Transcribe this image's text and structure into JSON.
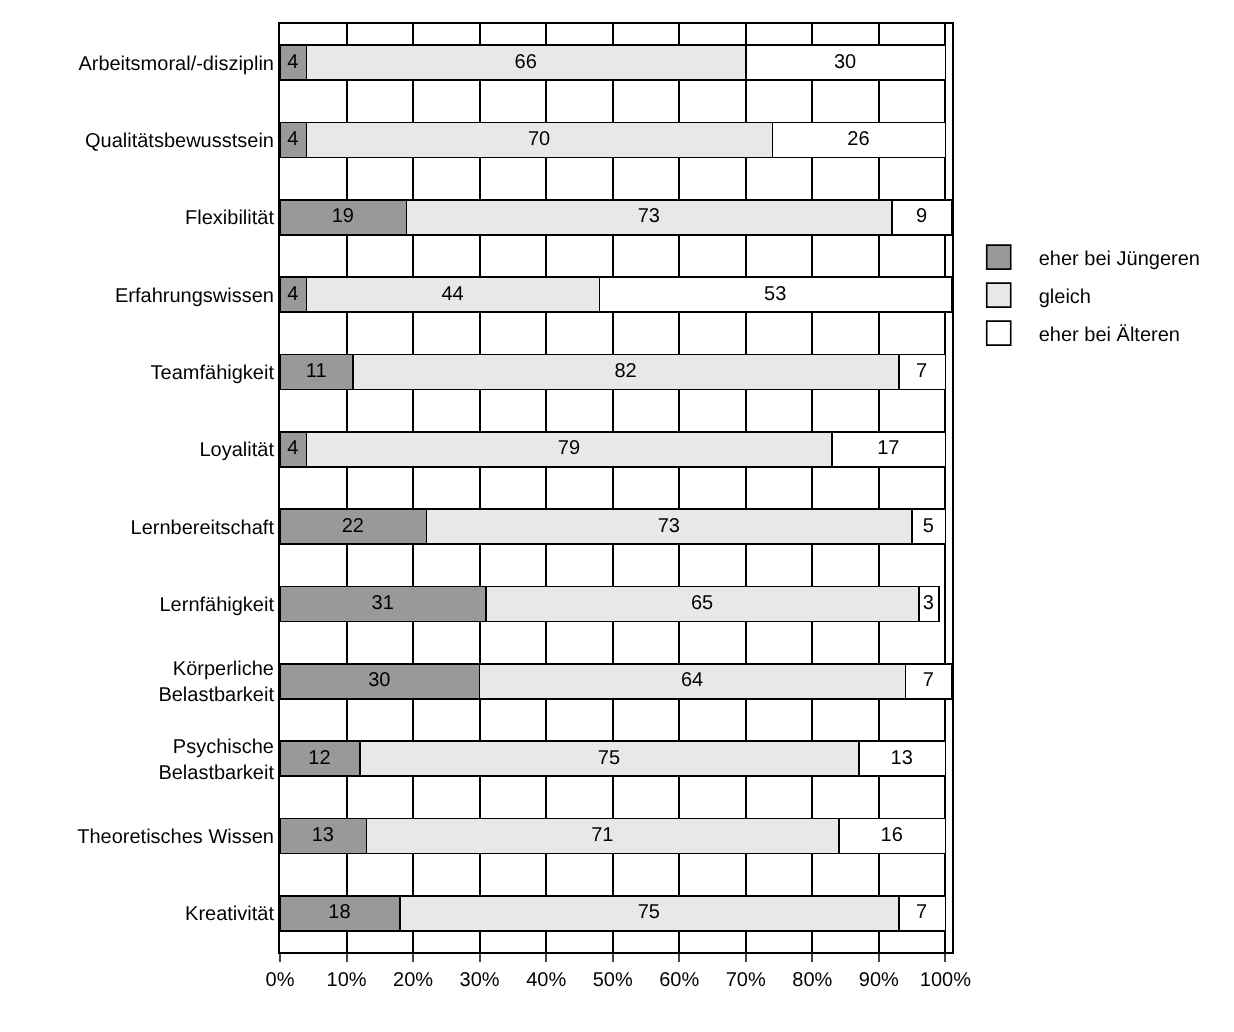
{
  "chart_data": {
    "type": "bar",
    "orientation": "horizontal",
    "stacked": true,
    "data_labels": true,
    "grid": "x",
    "legend": "right",
    "categories": [
      "Arbeitsmoral/-disziplin",
      "Qualitätsbewusstsein",
      "Flexibilität",
      "Erfahrungswissen",
      "Teamfähigkeit",
      "Loyalität",
      "Lernbereitschaft",
      "Lernfähigkeit",
      "Körperliche\nBelastbarkeit",
      "Psychische\nBelastbarkeit",
      "Theoretisches Wissen",
      "Kreativität"
    ],
    "series": [
      {
        "name": "eher bei Jüngeren",
        "color": "#999999",
        "values": [
          4,
          4,
          19,
          4,
          11,
          4,
          22,
          31,
          30,
          12,
          13,
          18
        ]
      },
      {
        "name": "gleich",
        "color": "#e8e8e8",
        "values": [
          66,
          70,
          73,
          44,
          82,
          79,
          73,
          65,
          64,
          75,
          71,
          75
        ]
      },
      {
        "name": "eher bei Älteren",
        "color": "#ffffff",
        "values": [
          30,
          26,
          9,
          53,
          7,
          17,
          5,
          3,
          7,
          13,
          16,
          7
        ]
      }
    ],
    "xlim": [
      0,
      101
    ],
    "xticks": [
      {
        "value": 0,
        "label": "0%"
      },
      {
        "value": 10,
        "label": "10%"
      },
      {
        "value": 20,
        "label": "20%"
      },
      {
        "value": 30,
        "label": "30%"
      },
      {
        "value": 40,
        "label": "40%"
      },
      {
        "value": 50,
        "label": "50%"
      },
      {
        "value": 60,
        "label": "60%"
      },
      {
        "value": 70,
        "label": "70%"
      },
      {
        "value": 80,
        "label": "80%"
      },
      {
        "value": 90,
        "label": "90%"
      },
      {
        "value": 100,
        "label": "100%"
      }
    ]
  }
}
